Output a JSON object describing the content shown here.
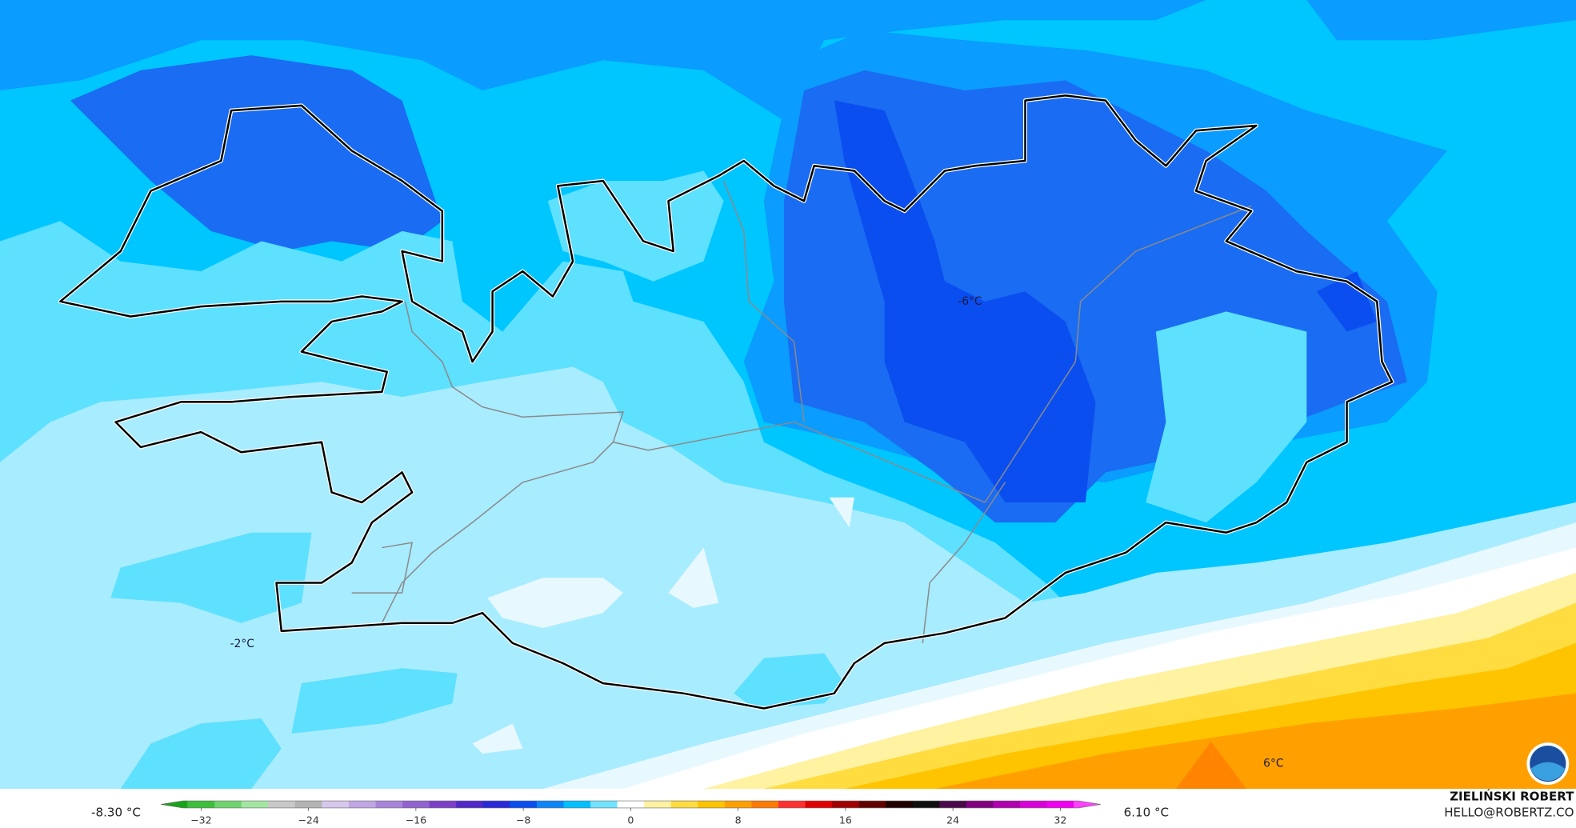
{
  "map": {
    "labels": [
      "-6°C",
      "-2°C",
      "6°C"
    ],
    "credit": {
      "name": "ZIELIŃSKI ROBERT",
      "email": "HELLO@ROBERTZ.CO"
    }
  },
  "colorbar": {
    "min_label": "-8.30 °C",
    "max_label": "6.10 °C",
    "lim": [
      -35,
      35
    ],
    "ticks": [
      {
        "value": -32,
        "label": "−32"
      },
      {
        "value": -24,
        "label": "−24"
      },
      {
        "value": -16,
        "label": "−16"
      },
      {
        "value": -8,
        "label": "−8"
      },
      0,
      8,
      16,
      24,
      32
    ],
    "colors": [
      "#1aa31a",
      "#3dbf3d",
      "#6fd46f",
      "#a3e6a3",
      "#c8c8c8",
      "#b4b4b4",
      "#d6c8ec",
      "#c0a6e4",
      "#a884da",
      "#9262d0",
      "#7c40c8",
      "#5028c8",
      "#2a2ad8",
      "#0a4ef0",
      "#0a86fa",
      "#00c0ff",
      "#70e4ff",
      "#ffffff",
      "#fff2a0",
      "#ffdc40",
      "#ffc400",
      "#ffa000",
      "#ff7a00",
      "#ff3030",
      "#e00000",
      "#a00000",
      "#600000",
      "#200000",
      "#101010",
      "#4a0a4a",
      "#800080",
      "#b000b0",
      "#d800d8",
      "#f000f0",
      "#ff40ff"
    ]
  }
}
